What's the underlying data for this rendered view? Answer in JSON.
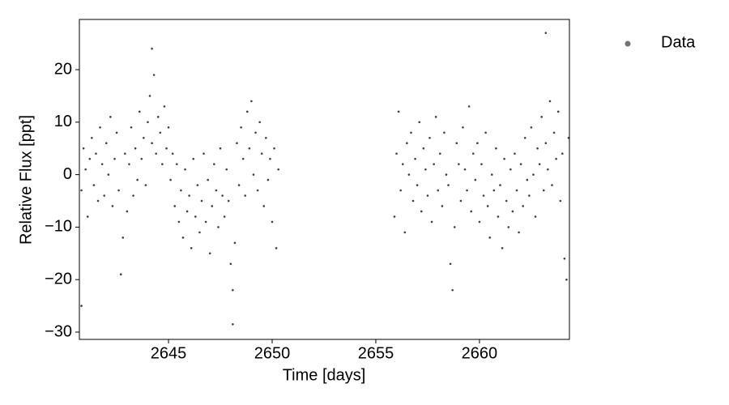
{
  "chart_data": {
    "type": "scatter",
    "xlabel": "Time [days]",
    "ylabel": "Relative Flux [ppt]",
    "xlim": [
      2640.7,
      2664.34
    ],
    "ylim": [
      -31.39,
      29.57
    ],
    "xticks": [
      2645,
      2650,
      2655,
      2660
    ],
    "yticks": [
      {
        "value": -30,
        "label": "−30"
      },
      {
        "value": -20,
        "label": "−20"
      },
      {
        "value": -10,
        "label": "−10"
      },
      0,
      10,
      20
    ],
    "legend": "upper right outside",
    "series": [
      {
        "name": "Data",
        "color": "#000000",
        "x": [
          2640.8,
          2640.9,
          2641.0,
          2641.1,
          2641.2,
          2641.3,
          2641.4,
          2641.5,
          2641.6,
          2641.7,
          2641.8,
          2641.9,
          2642.0,
          2642.1,
          2642.2,
          2642.3,
          2642.4,
          2642.5,
          2642.6,
          2642.7,
          2642.8,
          2642.9,
          2643.0,
          2643.1,
          2643.2,
          2643.3,
          2643.4,
          2643.5,
          2643.6,
          2643.7,
          2643.8,
          2643.9,
          2644.0,
          2644.1,
          2644.2,
          2644.3,
          2644.4,
          2644.5,
          2644.6,
          2644.7,
          2644.8,
          2644.9,
          2645.0,
          2645.1,
          2645.2,
          2645.3,
          2645.4,
          2645.5,
          2645.6,
          2645.7,
          2645.8,
          2645.9,
          2646.0,
          2646.1,
          2646.2,
          2646.3,
          2646.4,
          2646.5,
          2646.6,
          2646.7,
          2646.8,
          2646.9,
          2647.0,
          2647.1,
          2647.2,
          2647.3,
          2647.4,
          2647.5,
          2647.6,
          2647.7,
          2647.8,
          2647.9,
          2648.0,
          2648.1,
          2648.2,
          2648.3,
          2648.4,
          2648.5,
          2648.6,
          2648.7,
          2648.8,
          2648.9,
          2649.0,
          2649.1,
          2649.2,
          2649.3,
          2649.4,
          2649.5,
          2649.6,
          2649.7,
          2649.8,
          2649.9,
          2650.0,
          2650.1,
          2650.2,
          2650.3,
          2655.9,
          2656.0,
          2656.1,
          2656.2,
          2656.3,
          2656.4,
          2656.5,
          2656.6,
          2656.7,
          2656.8,
          2656.9,
          2657.0,
          2657.1,
          2657.2,
          2657.3,
          2657.4,
          2657.5,
          2657.6,
          2657.7,
          2657.8,
          2657.9,
          2658.0,
          2658.1,
          2658.2,
          2658.3,
          2658.4,
          2658.5,
          2658.6,
          2658.7,
          2658.8,
          2658.9,
          2659.0,
          2659.1,
          2659.2,
          2659.3,
          2659.4,
          2659.5,
          2659.6,
          2659.7,
          2659.8,
          2659.9,
          2660.0,
          2660.1,
          2660.2,
          2660.3,
          2660.4,
          2660.5,
          2660.6,
          2660.7,
          2660.8,
          2660.9,
          2661.0,
          2661.1,
          2661.2,
          2661.3,
          2661.4,
          2661.5,
          2661.6,
          2661.7,
          2661.8,
          2661.9,
          2662.0,
          2662.1,
          2662.2,
          2662.3,
          2662.4,
          2662.5,
          2662.6,
          2662.7,
          2662.8,
          2662.9,
          2663.0,
          2663.1,
          2663.2,
          2663.3,
          2663.4,
          2663.5,
          2663.6,
          2663.7,
          2663.8,
          2663.9,
          2664.0,
          2664.1,
          2664.2,
          2664.3,
          2644.2,
          2663.2,
          2648.1,
          2640.8
        ],
        "values": [
          -3,
          5,
          1,
          -8,
          3,
          7,
          -2,
          4,
          -5,
          9,
          2,
          -4,
          6,
          0,
          11,
          -6,
          3,
          8,
          -3,
          -19,
          -12,
          4,
          -7,
          2,
          9,
          -4,
          5,
          -1,
          12,
          3,
          7,
          -2,
          10,
          15,
          6,
          19,
          4,
          11,
          8,
          2,
          13,
          5,
          9,
          -1,
          4,
          -6,
          2,
          -9,
          -3,
          -12,
          1,
          -7,
          -4,
          -14,
          3,
          -8,
          -2,
          -11,
          -5,
          4,
          -9,
          -1,
          -15,
          -6,
          2,
          -3,
          -10,
          5,
          -4,
          -8,
          1,
          -5,
          -17,
          -22,
          -13,
          6,
          -2,
          9,
          3,
          -4,
          12,
          5,
          14,
          0,
          8,
          -3,
          10,
          4,
          -6,
          7,
          -1,
          3,
          -9,
          5,
          -14,
          1,
          -8,
          4,
          12,
          -3,
          2,
          -11,
          6,
          0,
          8,
          -5,
          3,
          -2,
          10,
          -7,
          5,
          1,
          -4,
          7,
          -9,
          2,
          11,
          -3,
          4,
          -6,
          8,
          0,
          -2,
          -17,
          -22,
          -10,
          6,
          2,
          -5,
          9,
          1,
          -3,
          13,
          -7,
          4,
          -1,
          6,
          -9,
          2,
          -4,
          8,
          -6,
          -12,
          0,
          -3,
          5,
          -8,
          -2,
          -14,
          3,
          -5,
          -10,
          1,
          -7,
          4,
          -3,
          -11,
          2,
          -6,
          7,
          -1,
          -4,
          9,
          0,
          -8,
          5,
          2,
          11,
          -3,
          6,
          1,
          14,
          -2,
          8,
          3,
          12,
          -5,
          4,
          -16,
          -20,
          7,
          24,
          27,
          -28.5,
          -25
        ]
      }
    ]
  }
}
